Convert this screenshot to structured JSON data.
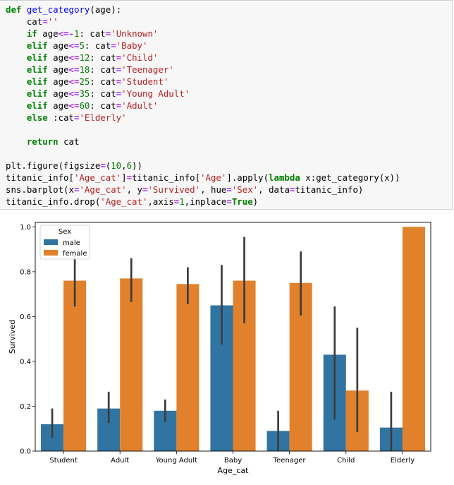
{
  "code_cell": {
    "lines": [
      [
        {
          "c": "kw",
          "t": "def"
        },
        {
          "c": "",
          "t": " "
        },
        {
          "c": "fn",
          "t": "get_category"
        },
        {
          "c": "",
          "t": "(age):"
        }
      ],
      [
        {
          "c": "",
          "t": "    cat"
        },
        {
          "c": "op",
          "t": "="
        },
        {
          "c": "str",
          "t": "''"
        }
      ],
      [
        {
          "c": "",
          "t": "    "
        },
        {
          "c": "kw",
          "t": "if"
        },
        {
          "c": "",
          "t": " age"
        },
        {
          "c": "op",
          "t": "<=-"
        },
        {
          "c": "num",
          "t": "1"
        },
        {
          "c": "",
          "t": ": cat"
        },
        {
          "c": "op",
          "t": "="
        },
        {
          "c": "str",
          "t": "'Unknown'"
        }
      ],
      [
        {
          "c": "",
          "t": "    "
        },
        {
          "c": "kw",
          "t": "elif"
        },
        {
          "c": "",
          "t": " age"
        },
        {
          "c": "op",
          "t": "<="
        },
        {
          "c": "num",
          "t": "5"
        },
        {
          "c": "",
          "t": ": cat"
        },
        {
          "c": "op",
          "t": "="
        },
        {
          "c": "str",
          "t": "'Baby'"
        }
      ],
      [
        {
          "c": "",
          "t": "    "
        },
        {
          "c": "kw",
          "t": "elif"
        },
        {
          "c": "",
          "t": " age"
        },
        {
          "c": "op",
          "t": "<="
        },
        {
          "c": "num",
          "t": "12"
        },
        {
          "c": "",
          "t": ": cat"
        },
        {
          "c": "op",
          "t": "="
        },
        {
          "c": "str",
          "t": "'Child'"
        }
      ],
      [
        {
          "c": "",
          "t": "    "
        },
        {
          "c": "kw",
          "t": "elif"
        },
        {
          "c": "",
          "t": " age"
        },
        {
          "c": "op",
          "t": "<="
        },
        {
          "c": "num",
          "t": "18"
        },
        {
          "c": "",
          "t": ": cat"
        },
        {
          "c": "op",
          "t": "="
        },
        {
          "c": "str",
          "t": "'Teenager'"
        }
      ],
      [
        {
          "c": "",
          "t": "    "
        },
        {
          "c": "kw",
          "t": "elif"
        },
        {
          "c": "",
          "t": " age"
        },
        {
          "c": "op",
          "t": "<="
        },
        {
          "c": "num",
          "t": "25"
        },
        {
          "c": "",
          "t": ": cat"
        },
        {
          "c": "op",
          "t": "="
        },
        {
          "c": "str",
          "t": "'Student'"
        }
      ],
      [
        {
          "c": "",
          "t": "    "
        },
        {
          "c": "kw",
          "t": "elif"
        },
        {
          "c": "",
          "t": " age"
        },
        {
          "c": "op",
          "t": "<="
        },
        {
          "c": "num",
          "t": "35"
        },
        {
          "c": "",
          "t": ": cat"
        },
        {
          "c": "op",
          "t": "="
        },
        {
          "c": "str",
          "t": "'Young Adult'"
        }
      ],
      [
        {
          "c": "",
          "t": "    "
        },
        {
          "c": "kw",
          "t": "elif"
        },
        {
          "c": "",
          "t": " age"
        },
        {
          "c": "op",
          "t": "<="
        },
        {
          "c": "num",
          "t": "60"
        },
        {
          "c": "",
          "t": ": cat"
        },
        {
          "c": "op",
          "t": "="
        },
        {
          "c": "str",
          "t": "'Adult'"
        }
      ],
      [
        {
          "c": "",
          "t": "    "
        },
        {
          "c": "kw",
          "t": "else"
        },
        {
          "c": "",
          "t": " :cat"
        },
        {
          "c": "op",
          "t": "="
        },
        {
          "c": "str",
          "t": "'Elderly'"
        }
      ],
      [],
      [
        {
          "c": "",
          "t": "    "
        },
        {
          "c": "kw",
          "t": "return"
        },
        {
          "c": "",
          "t": " cat"
        }
      ],
      [],
      [
        {
          "c": "",
          "t": "plt.figure(figsize"
        },
        {
          "c": "op",
          "t": "="
        },
        {
          "c": "",
          "t": "("
        },
        {
          "c": "num",
          "t": "10"
        },
        {
          "c": "",
          "t": ","
        },
        {
          "c": "num",
          "t": "6"
        },
        {
          "c": "",
          "t": "))"
        }
      ],
      [
        {
          "c": "",
          "t": "titanic_info["
        },
        {
          "c": "str",
          "t": "'Age_cat'"
        },
        {
          "c": "",
          "t": "]"
        },
        {
          "c": "op",
          "t": "="
        },
        {
          "c": "",
          "t": "titanic_info["
        },
        {
          "c": "str",
          "t": "'Age'"
        },
        {
          "c": "",
          "t": "].apply("
        },
        {
          "c": "kw",
          "t": "lambda"
        },
        {
          "c": "",
          "t": " x:get_category(x))"
        }
      ],
      [
        {
          "c": "",
          "t": "sns.barplot(x"
        },
        {
          "c": "op",
          "t": "="
        },
        {
          "c": "str",
          "t": "'Age_cat'"
        },
        {
          "c": "",
          "t": ", y"
        },
        {
          "c": "op",
          "t": "="
        },
        {
          "c": "str",
          "t": "'Survived'"
        },
        {
          "c": "",
          "t": ", hue"
        },
        {
          "c": "op",
          "t": "="
        },
        {
          "c": "str",
          "t": "'Sex'"
        },
        {
          "c": "",
          "t": ", data"
        },
        {
          "c": "op",
          "t": "="
        },
        {
          "c": "",
          "t": "titanic_info)"
        }
      ],
      [
        {
          "c": "",
          "t": "titanic_info.drop("
        },
        {
          "c": "str",
          "t": "'Age_cat'"
        },
        {
          "c": "",
          "t": ",axis"
        },
        {
          "c": "op",
          "t": "="
        },
        {
          "c": "num",
          "t": "1"
        },
        {
          "c": "",
          "t": ",inplace"
        },
        {
          "c": "op",
          "t": "="
        },
        {
          "c": "kw",
          "t": "True"
        },
        {
          "c": "",
          "t": ")"
        }
      ]
    ]
  },
  "chart_data": {
    "type": "bar",
    "title": "",
    "xlabel": "Age_cat",
    "ylabel": "Survived",
    "ylim": [
      0,
      1.02
    ],
    "yticks": [
      0.0,
      0.2,
      0.4,
      0.6,
      0.8,
      1.0
    ],
    "ytick_labels": [
      "0.0",
      "0.2",
      "0.4",
      "0.6",
      "0.8",
      "1.0"
    ],
    "categories": [
      "Student",
      "Adult",
      "Young Adult",
      "Baby",
      "Teenager",
      "Child",
      "Elderly"
    ],
    "legend": {
      "title": "Sex",
      "location": "top-left"
    },
    "series": [
      {
        "name": "male",
        "color": "#3274a1",
        "values": [
          0.12,
          0.19,
          0.18,
          0.65,
          0.09,
          0.43,
          0.105
        ],
        "ci_low": [
          0.06,
          0.125,
          0.13,
          0.475,
          0.0,
          0.14,
          0.0
        ],
        "ci_high": [
          0.19,
          0.265,
          0.23,
          0.83,
          0.18,
          0.645,
          0.265
        ]
      },
      {
        "name": "female",
        "color": "#e1812c",
        "values": [
          0.76,
          0.77,
          0.745,
          0.76,
          0.75,
          0.27,
          1.0
        ],
        "ci_low": [
          0.645,
          0.665,
          0.655,
          0.57,
          0.605,
          0.085,
          1.0
        ],
        "ci_high": [
          0.87,
          0.86,
          0.82,
          0.955,
          0.89,
          0.55,
          1.0
        ]
      }
    ]
  }
}
